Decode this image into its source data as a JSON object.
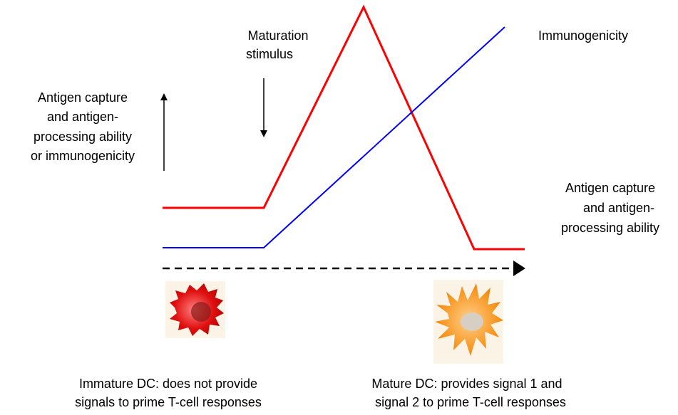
{
  "stimulus_label": [
    "Maturation",
    "stimulus"
  ],
  "immunogenicity_label": "Immunogenicity",
  "y_axis_label": [
    "Antigen capture",
    "and antigen-",
    "processing ability",
    "or immunogenicity"
  ],
  "antigen_label": [
    "Antigen capture",
    "and antigen-",
    "processing ability"
  ],
  "immature_caption": [
    "Immature DC: does not provide",
    "signals to prime T-cell responses"
  ],
  "mature_caption": [
    "Mature DC: provides signal 1 and",
    "signal 2 to prime T-cell responses"
  ]
}
